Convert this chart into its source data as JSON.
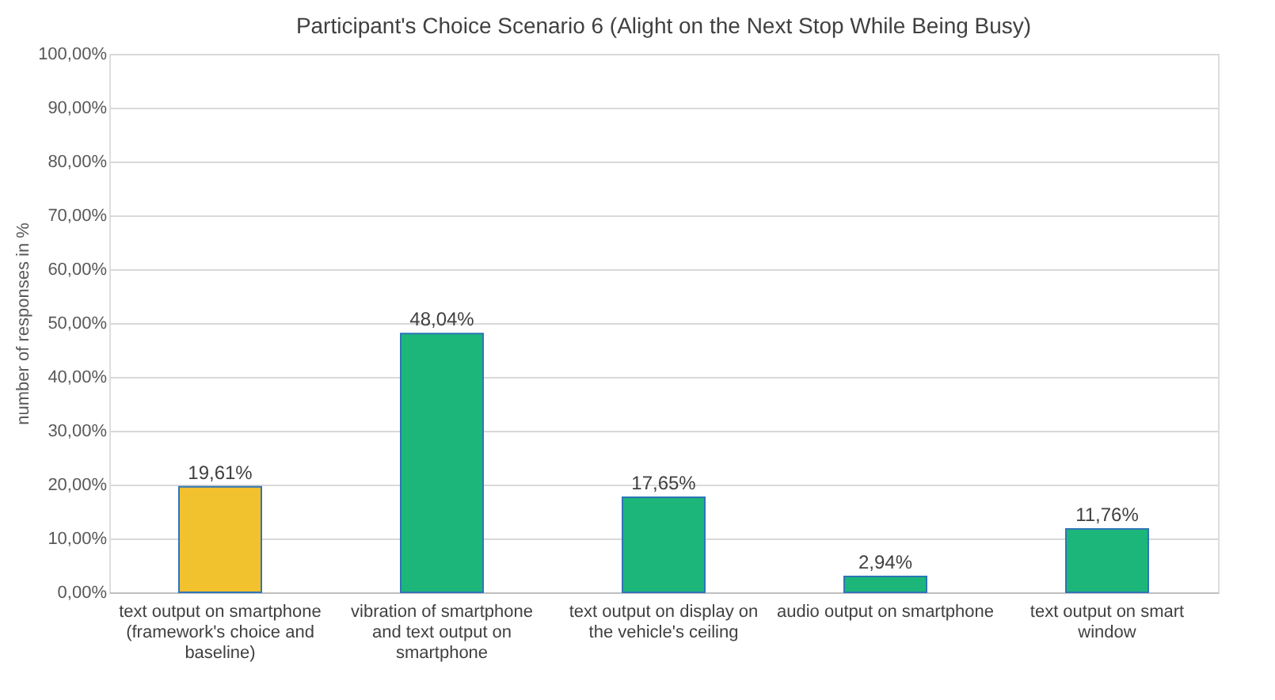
{
  "chart_data": {
    "type": "bar",
    "title": "Participant's Choice Scenario 6 (Alight on the Next Stop While Being Busy)",
    "ylabel": "number of responses in %",
    "categories": [
      "text output on smartphone (framework's choice and baseline)",
      "vibration of smartphone and text output on smartphone",
      "text output on display on the vehicle's ceiling",
      "audio output on smartphone",
      "text output on smart window"
    ],
    "values": [
      19.61,
      48.04,
      17.65,
      2.94,
      11.76
    ],
    "value_labels": [
      "19,61%",
      "48,04%",
      "17,65%",
      "2,94%",
      "11,76%"
    ],
    "colors": [
      "#f2c12e",
      "#1db67a",
      "#1db67a",
      "#1db67a",
      "#1db67a"
    ],
    "ylim": [
      0,
      100
    ],
    "yticks": [
      {
        "value": 0,
        "label": "0,00%"
      },
      {
        "value": 10,
        "label": "10,00%"
      },
      {
        "value": 20,
        "label": "20,00%"
      },
      {
        "value": 30,
        "label": "30,00%"
      },
      {
        "value": 40,
        "label": "40,00%"
      },
      {
        "value": 50,
        "label": "50,00%"
      },
      {
        "value": 60,
        "label": "60,00%"
      },
      {
        "value": 70,
        "label": "70,00%"
      },
      {
        "value": 80,
        "label": "80,00%"
      },
      {
        "value": 90,
        "label": "90,00%"
      },
      {
        "value": 100,
        "label": "100,00%"
      }
    ],
    "grid": "y"
  }
}
